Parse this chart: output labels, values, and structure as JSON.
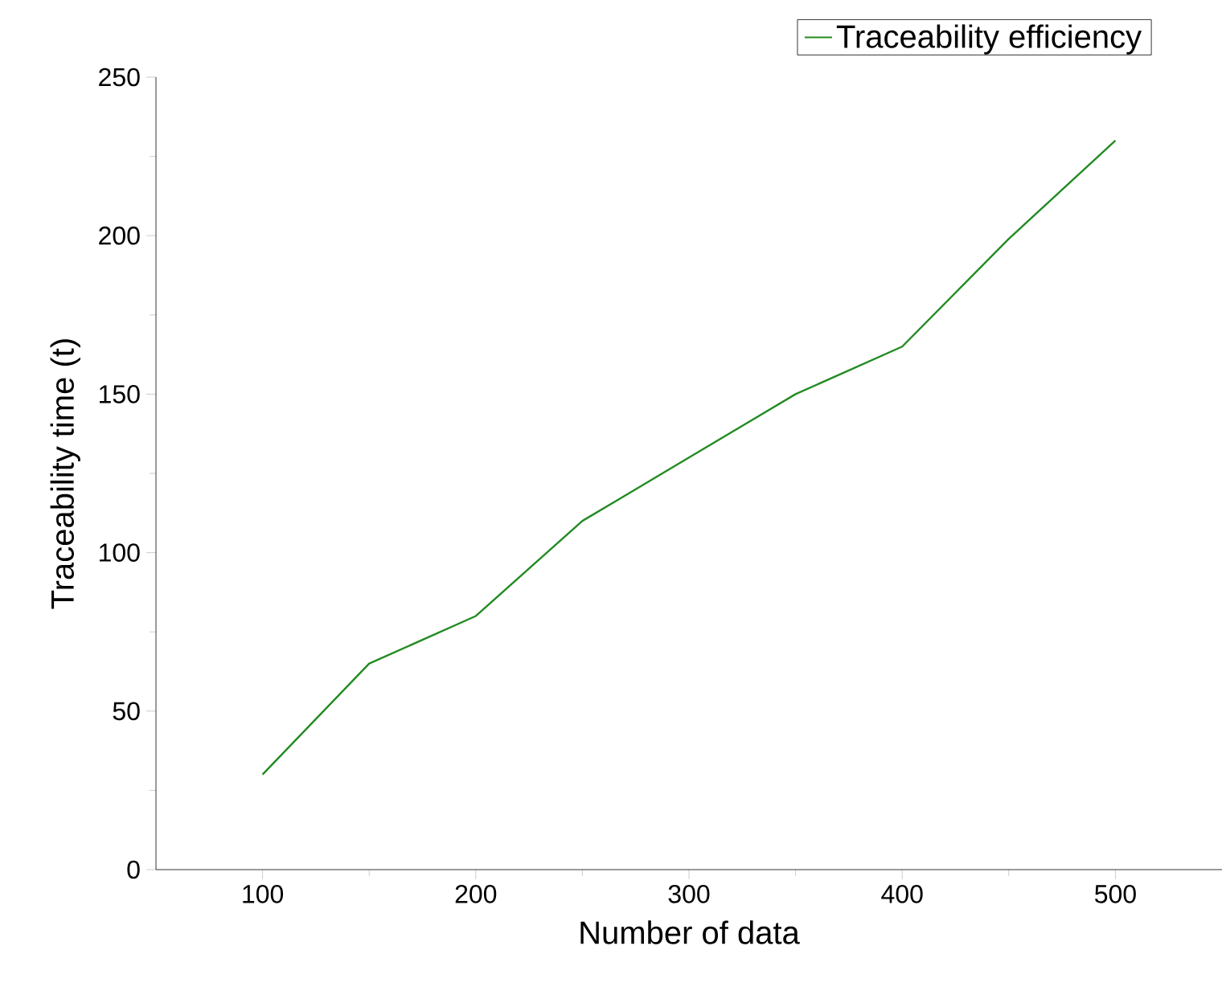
{
  "chart_data": {
    "type": "line",
    "xlabel": "Number of data",
    "ylabel": "Traceability time (t)",
    "x": [
      100,
      150,
      200,
      250,
      300,
      350,
      400,
      450,
      500
    ],
    "series": [
      {
        "name": "Traceability efficiency",
        "color": "#228b22",
        "values": [
          30,
          65,
          80,
          110,
          130,
          150,
          165,
          199,
          230
        ]
      }
    ],
    "xlim": [
      50,
      550
    ],
    "ylim": [
      0,
      250
    ],
    "xticks": [
      100,
      200,
      300,
      400,
      500
    ],
    "yticks": [
      0,
      50,
      100,
      150,
      200,
      250
    ],
    "legend": "top right",
    "grid": false
  }
}
